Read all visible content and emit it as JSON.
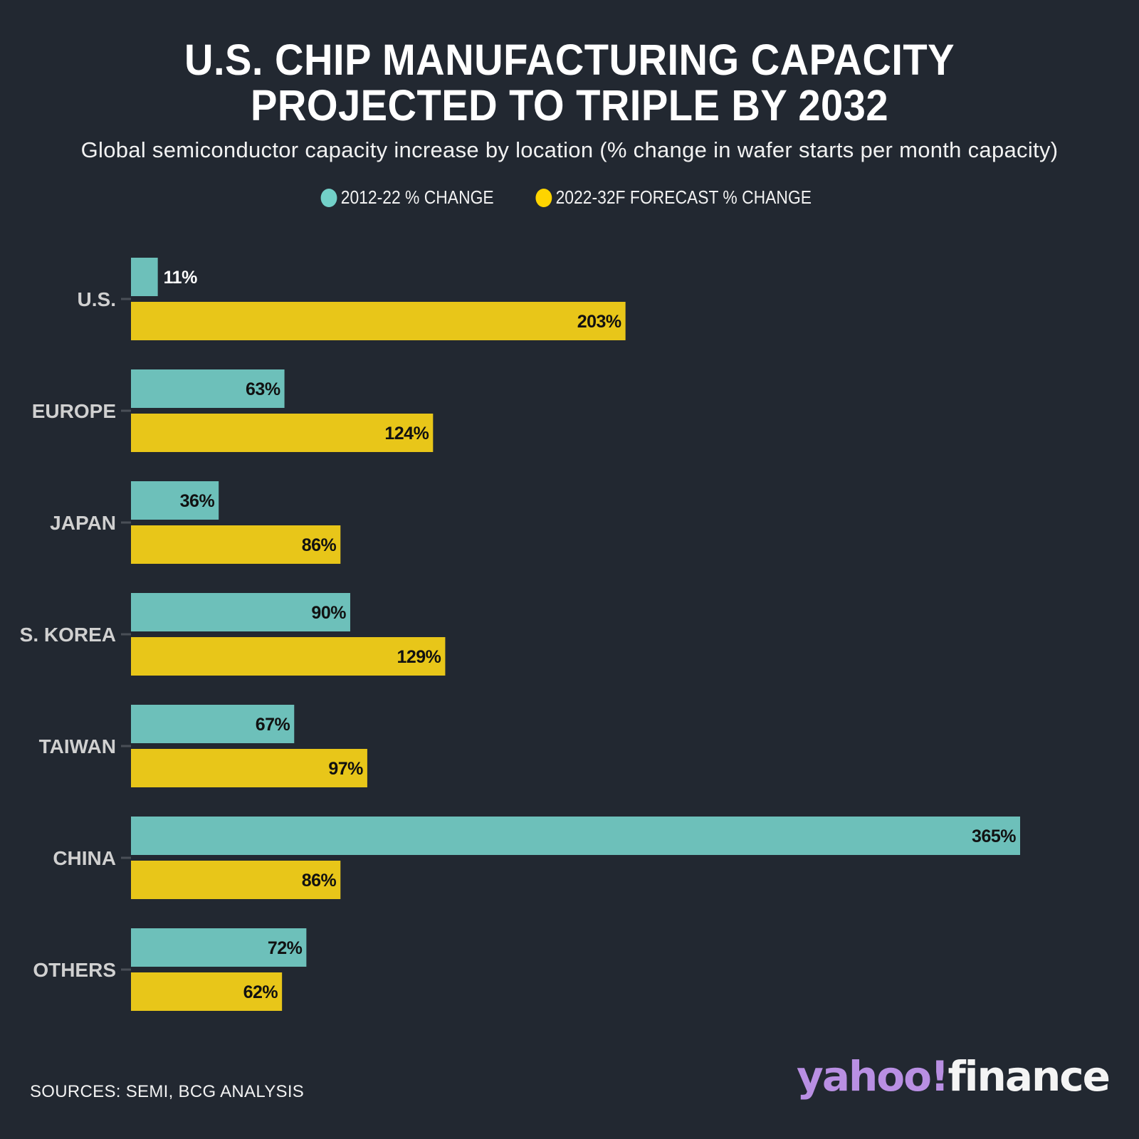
{
  "colors": {
    "background": "#222831",
    "series_2012_22": "#6dc0ba",
    "series_2022_32": "#e8c619",
    "legend_2012_22": "#72d0c8",
    "legend_2022_32": "#fed400",
    "category_label": "#d0d0d0",
    "value_label_dark": "#111111",
    "value_label_light": "#ffffff",
    "logo_yahoo": "#b98fe3",
    "logo_finance": "#f4f4f4"
  },
  "chart_data": {
    "type": "bar",
    "orientation": "horizontal",
    "title": "U.S. CHIP MANUFACTURING CAPACITY PROJECTED TO TRIPLE BY 2032",
    "title_lines": [
      "U.S. CHIP MANUFACTURING CAPACITY",
      "PROJECTED TO TRIPLE BY 2032"
    ],
    "subtitle": "Global semiconductor capacity increase by location (% change in wafer starts per month capacity)",
    "xlabel": "",
    "ylabel": "",
    "xlim": [
      0,
      365
    ],
    "grid": false,
    "legend_position": "top-center",
    "categories": [
      "U.S.",
      "EUROPE",
      "JAPAN",
      "S. KOREA",
      "TAIWAN",
      "CHINA",
      "OTHERS"
    ],
    "series": [
      {
        "name": "2012-22 % CHANGE",
        "values": [
          11,
          63,
          36,
          90,
          67,
          365,
          72
        ],
        "labels": [
          "11%",
          "63%",
          "36%",
          "90%",
          "67%",
          "365%",
          "72%"
        ]
      },
      {
        "name": "2022-32F FORECAST % CHANGE",
        "values": [
          203,
          124,
          86,
          129,
          97,
          86,
          62
        ],
        "labels": [
          "203%",
          "124%",
          "86%",
          "129%",
          "97%",
          "86%",
          "62%"
        ]
      }
    ],
    "source": "SOURCES: SEMI, BCG ANALYSIS"
  },
  "branding": {
    "logo_part1": "yahoo!",
    "logo_part2": "finance"
  }
}
